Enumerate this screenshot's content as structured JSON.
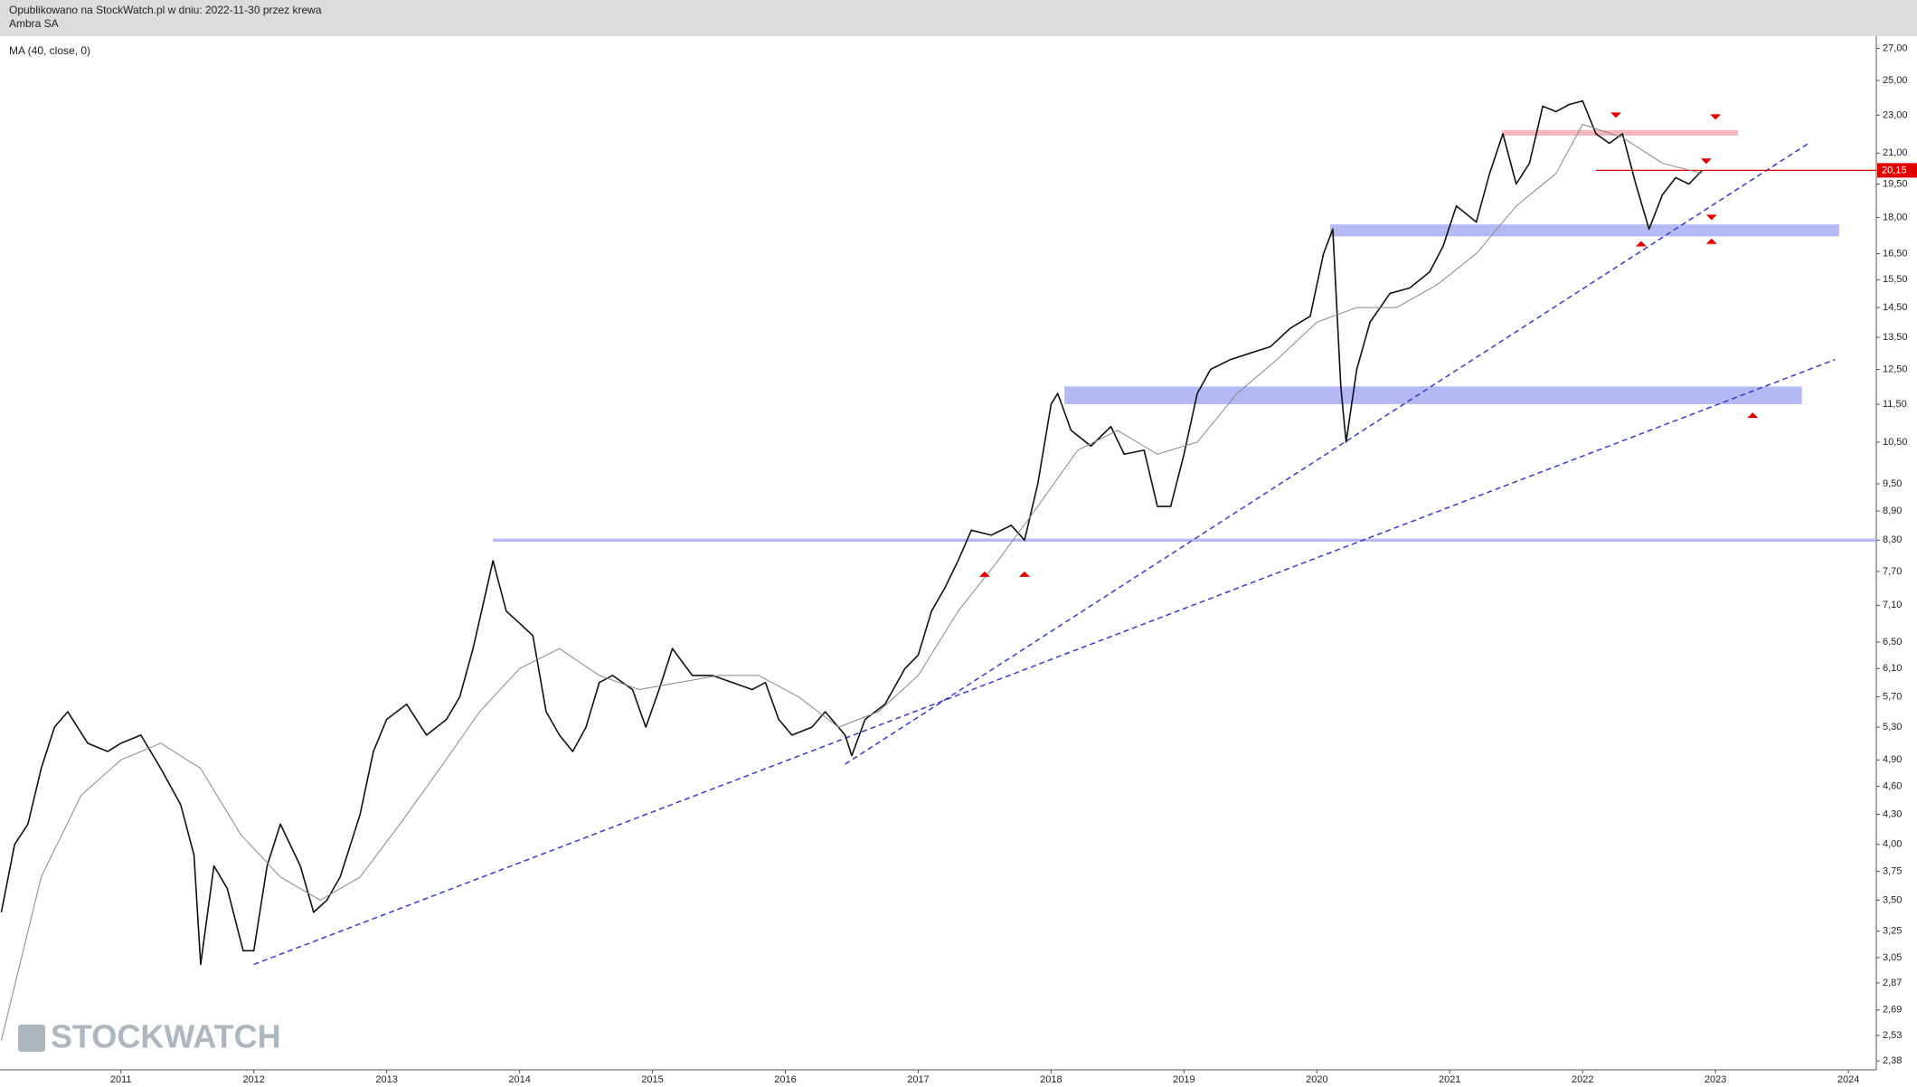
{
  "header": {
    "line1": "Opublikowano na StockWatch.pl w dniu: 2022-11-30 przez krewa",
    "line2": "Ambra SA"
  },
  "watermark": "STOCKWATCH",
  "chart_data": {
    "type": "line",
    "indicator_label": "MA (40, close, 0)",
    "log_scale": true,
    "xlim": [
      2010.09,
      2024.21
    ],
    "ylim": [
      2.33,
      27.8
    ],
    "xticks": [
      2011,
      2012,
      2013,
      2014,
      2015,
      2016,
      2017,
      2018,
      2019,
      2020,
      2021,
      2022,
      2023,
      2024
    ],
    "yticks": [
      {
        "value": 27,
        "label": "27,00"
      },
      {
        "value": 25,
        "label": "25,00"
      },
      {
        "value": 23,
        "label": "23,00"
      },
      {
        "value": 21,
        "label": "21,00"
      },
      {
        "value": 19.5,
        "label": "19,50"
      },
      {
        "value": 18,
        "label": "18,00"
      },
      {
        "value": 16.5,
        "label": "16,50"
      },
      {
        "value": 15.5,
        "label": "15,50"
      },
      {
        "value": 14.5,
        "label": "14,50"
      },
      {
        "value": 13.5,
        "label": "13,50"
      },
      {
        "value": 12.5,
        "label": "12,50"
      },
      {
        "value": 11.5,
        "label": "11,50"
      },
      {
        "value": 10.5,
        "label": "10,50"
      },
      {
        "value": 9.5,
        "label": "9,50"
      },
      {
        "value": 8.9,
        "label": "8,90"
      },
      {
        "value": 8.3,
        "label": "8,30"
      },
      {
        "value": 7.7,
        "label": "7,70"
      },
      {
        "value": 7.1,
        "label": "7,10"
      },
      {
        "value": 6.5,
        "label": "6,50"
      },
      {
        "value": 6.1,
        "label": "6,10"
      },
      {
        "value": 5.7,
        "label": "5,70"
      },
      {
        "value": 5.3,
        "label": "5,30"
      },
      {
        "value": 4.9,
        "label": "4,90"
      },
      {
        "value": 4.6,
        "label": "4,60"
      },
      {
        "value": 4.3,
        "label": "4,30"
      },
      {
        "value": 4,
        "label": "4,00"
      },
      {
        "value": 3.75,
        "label": "3,75"
      },
      {
        "value": 3.5,
        "label": "3,50"
      },
      {
        "value": 3.25,
        "label": "3,25"
      },
      {
        "value": 3.05,
        "label": "3,05"
      },
      {
        "value": 2.87,
        "label": "2,87"
      },
      {
        "value": 2.69,
        "label": "2,69"
      },
      {
        "value": 2.53,
        "label": "2,53"
      },
      {
        "value": 2.38,
        "label": "2,38"
      }
    ],
    "last_price": {
      "value": 20.15,
      "label": "20,15",
      "x_start": 2022.1,
      "color": "#e00000"
    },
    "series": [
      {
        "color": "#111111",
        "width": 1.6,
        "x": [
          2010.1,
          2010.2,
          2010.3,
          2010.4,
          2010.5,
          2010.6,
          2010.75,
          2010.9,
          2011.0,
          2011.15,
          2011.3,
          2011.45,
          2011.55,
          2011.6,
          2011.7,
          2011.8,
          2011.92,
          2012.0,
          2012.1,
          2012.2,
          2012.35,
          2012.45,
          2012.55,
          2012.65,
          2012.8,
          2012.9,
          2013.0,
          2013.15,
          2013.3,
          2013.45,
          2013.55,
          2013.65,
          2013.8,
          2013.9,
          2014.0,
          2014.1,
          2014.2,
          2014.3,
          2014.4,
          2014.5,
          2014.6,
          2014.7,
          2014.85,
          2014.95,
          2015.05,
          2015.15,
          2015.3,
          2015.45,
          2015.6,
          2015.75,
          2015.85,
          2015.95,
          2016.05,
          2016.2,
          2016.3,
          2016.45,
          2016.5,
          2016.6,
          2016.75,
          2016.9,
          2017.0,
          2017.1,
          2017.2,
          2017.3,
          2017.4,
          2017.55,
          2017.7,
          2017.8,
          2017.9,
          2018.0,
          2018.05,
          2018.15,
          2018.3,
          2018.45,
          2018.55,
          2018.7,
          2018.8,
          2018.9,
          2019.0,
          2019.1,
          2019.2,
          2019.35,
          2019.5,
          2019.65,
          2019.8,
          2019.95,
          2020.05,
          2020.12,
          2020.18,
          2020.22,
          2020.3,
          2020.4,
          2020.55,
          2020.7,
          2020.85,
          2020.95,
          2021.05,
          2021.2,
          2021.3,
          2021.4,
          2021.5,
          2021.6,
          2021.7,
          2021.8,
          2021.9,
          2022.0,
          2022.1,
          2022.2,
          2022.3,
          2022.4,
          2022.5,
          2022.6,
          2022.7,
          2022.8,
          2022.9
        ],
        "values": [
          3.4,
          4.0,
          4.2,
          4.8,
          5.3,
          5.5,
          5.1,
          5.0,
          5.1,
          5.2,
          4.8,
          4.4,
          3.9,
          3.0,
          3.8,
          3.6,
          3.1,
          3.1,
          3.8,
          4.2,
          3.8,
          3.4,
          3.5,
          3.7,
          4.3,
          5.0,
          5.4,
          5.6,
          5.2,
          5.4,
          5.7,
          6.4,
          7.9,
          7.0,
          6.8,
          6.6,
          5.5,
          5.2,
          5.0,
          5.3,
          5.9,
          6.0,
          5.8,
          5.3,
          5.8,
          6.4,
          6.0,
          6.0,
          5.9,
          5.8,
          5.9,
          5.4,
          5.2,
          5.3,
          5.5,
          5.2,
          4.95,
          5.4,
          5.6,
          6.1,
          6.3,
          7.0,
          7.4,
          7.9,
          8.5,
          8.4,
          8.6,
          8.3,
          9.5,
          11.5,
          11.8,
          10.8,
          10.4,
          10.9,
          10.2,
          10.3,
          9.0,
          9.0,
          10.2,
          11.8,
          12.5,
          12.8,
          13.0,
          13.2,
          13.8,
          14.2,
          16.5,
          17.5,
          12.0,
          10.5,
          12.5,
          14.0,
          15.0,
          15.2,
          15.8,
          16.8,
          18.5,
          17.8,
          20.0,
          22.0,
          19.5,
          20.5,
          23.5,
          23.2,
          23.6,
          23.8,
          22.0,
          21.5,
          22.0,
          19.5,
          17.5,
          19.0,
          19.8,
          19.5,
          20.15
        ]
      },
      {
        "color": "#888888",
        "width": 1,
        "x": [
          2010.1,
          2010.4,
          2010.7,
          2011.0,
          2011.3,
          2011.6,
          2011.9,
          2012.2,
          2012.5,
          2012.8,
          2013.1,
          2013.4,
          2013.7,
          2014.0,
          2014.3,
          2014.6,
          2014.9,
          2015.2,
          2015.5,
          2015.8,
          2016.1,
          2016.4,
          2016.7,
          2017.0,
          2017.3,
          2017.6,
          2017.9,
          2018.2,
          2018.5,
          2018.8,
          2019.1,
          2019.4,
          2019.7,
          2020.0,
          2020.3,
          2020.6,
          2020.9,
          2021.2,
          2021.5,
          2021.8,
          2022.0,
          2022.3,
          2022.6,
          2022.9
        ],
        "values": [
          2.5,
          3.7,
          4.5,
          4.9,
          5.1,
          4.8,
          4.1,
          3.7,
          3.5,
          3.7,
          4.2,
          4.8,
          5.5,
          6.1,
          6.4,
          6.0,
          5.8,
          5.9,
          6.0,
          6.0,
          5.7,
          5.3,
          5.5,
          6.0,
          7.0,
          7.9,
          9.0,
          10.3,
          10.8,
          10.2,
          10.5,
          11.8,
          12.8,
          14.0,
          14.5,
          14.5,
          15.3,
          16.5,
          18.5,
          20.0,
          22.5,
          21.8,
          20.5,
          20.0
        ]
      }
    ],
    "zones": [
      {
        "x": [
          2013.8,
          2024.21
        ],
        "y": [
          8.27,
          8.33
        ],
        "color": "#b4b8f4"
      },
      {
        "x": [
          2018.1,
          2023.65
        ],
        "y": [
          11.5,
          12.0
        ],
        "color": "#b4b8f4"
      },
      {
        "x": [
          2020.1,
          2023.93
        ],
        "y": [
          17.2,
          17.7
        ],
        "color": "#b4b8f4"
      },
      {
        "x": [
          2021.39,
          2023.17
        ],
        "y": [
          21.9,
          22.2
        ],
        "color": "#f4b8bc"
      }
    ],
    "trendlines": [
      {
        "x": [
          2012.0,
          2023.9
        ],
        "y": [
          3.0,
          12.8
        ],
        "color": "#3a3ac8"
      },
      {
        "x": [
          2016.45,
          2023.7
        ],
        "y": [
          4.85,
          21.5
        ],
        "color": "#3a3ac8"
      }
    ],
    "markers": {
      "color": "#e00000",
      "up": [
        {
          "x": 2017.5,
          "y": 7.65
        },
        {
          "x": 2017.8,
          "y": 7.65
        },
        {
          "x": 2022.44,
          "y": 16.9
        },
        {
          "x": 2022.97,
          "y": 17.0
        },
        {
          "x": 2023.28,
          "y": 11.2
        }
      ],
      "down": [
        {
          "x": 2022.25,
          "y": 23.0
        },
        {
          "x": 2023.0,
          "y": 22.9
        },
        {
          "x": 2022.93,
          "y": 20.6
        },
        {
          "x": 2022.97,
          "y": 18.0
        }
      ]
    }
  }
}
